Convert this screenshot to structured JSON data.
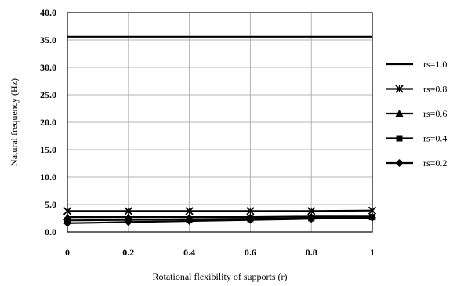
{
  "chart_data": {
    "type": "line",
    "title": "",
    "xlabel": "Rotational flexibility of supports (r)",
    "ylabel": "Natural frequency (Hz)",
    "xlim": [
      0,
      1
    ],
    "ylim": [
      0,
      40
    ],
    "x_ticks": [
      0,
      0.2,
      0.4,
      0.6,
      0.8,
      1
    ],
    "x_tick_labels": [
      "0",
      "0.2",
      "0.4",
      "0.6",
      "0.8",
      "1"
    ],
    "y_ticks": [
      0,
      5,
      10,
      15,
      20,
      25,
      30,
      35,
      40
    ],
    "y_tick_labels": [
      "0.0",
      "5.0",
      "10.0",
      "15.0",
      "20.0",
      "25.0",
      "30.0",
      "35.0",
      "40.0"
    ],
    "grid": true,
    "legend_position": "right",
    "x": [
      0,
      0.2,
      0.4,
      0.6,
      0.8,
      1
    ],
    "series": [
      {
        "name": "rs=1.0",
        "marker": "none",
        "values": [
          35.6,
          35.6,
          35.6,
          35.6,
          35.6,
          35.6
        ]
      },
      {
        "name": "rs=0.8",
        "marker": "x",
        "values": [
          3.8,
          3.8,
          3.8,
          3.8,
          3.8,
          3.9
        ]
      },
      {
        "name": "rs=0.6",
        "marker": "triangle",
        "values": [
          2.7,
          2.7,
          2.7,
          2.7,
          2.8,
          2.8
        ]
      },
      {
        "name": "rs=0.4",
        "marker": "square",
        "values": [
          2.1,
          2.2,
          2.3,
          2.4,
          2.5,
          2.7
        ]
      },
      {
        "name": "rs=0.2",
        "marker": "diamond",
        "values": [
          1.6,
          1.8,
          2.0,
          2.2,
          2.4,
          2.6
        ]
      }
    ],
    "line_color": "#000000",
    "grid_color": "#b3b3b3"
  }
}
